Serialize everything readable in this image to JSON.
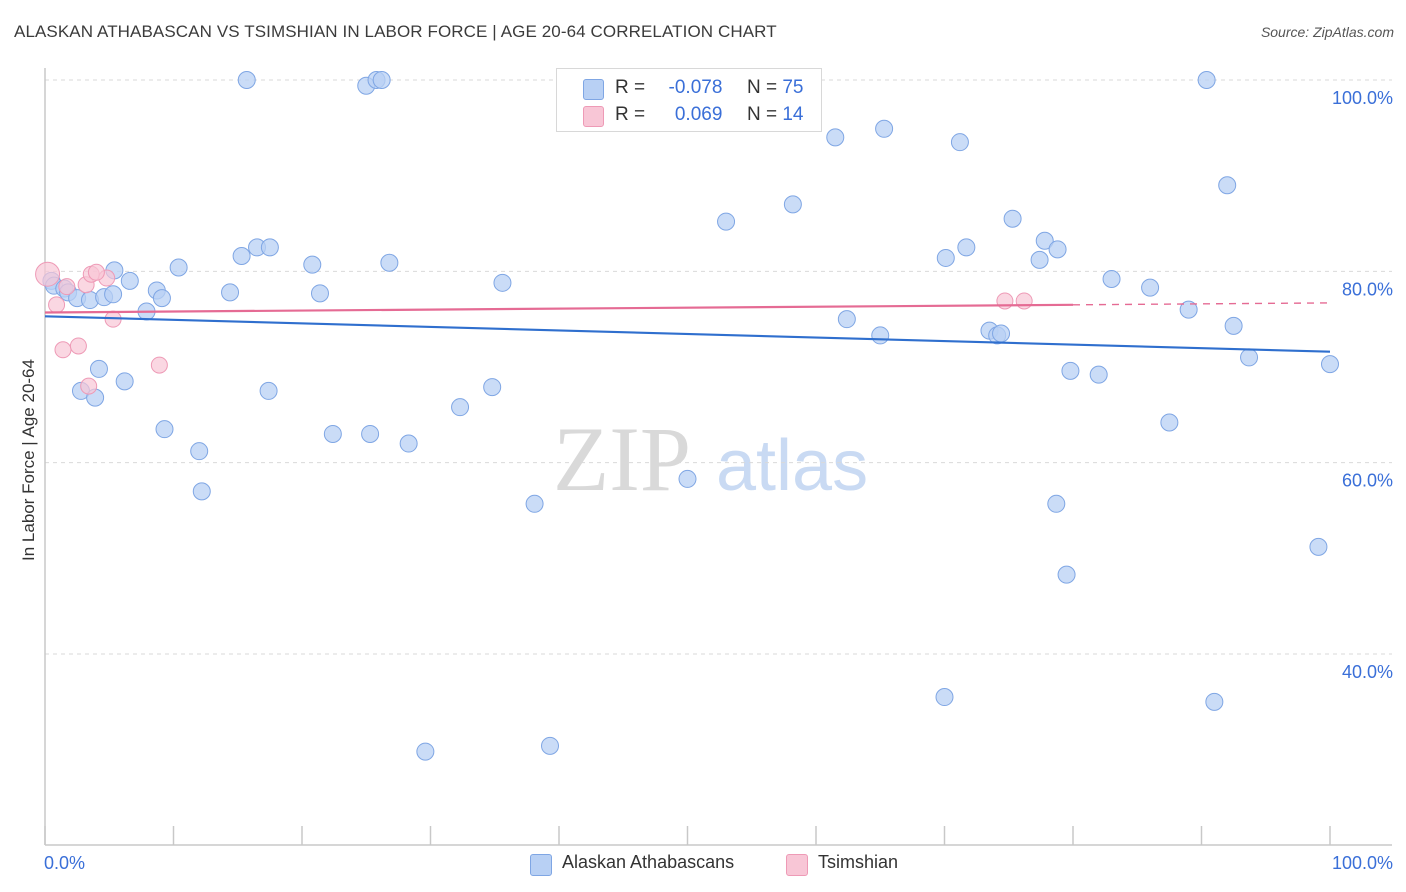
{
  "header": {
    "title": "ALASKAN ATHABASCAN VS TSIMSHIAN IN LABOR FORCE | AGE 20-64 CORRELATION CHART",
    "source": "Source: ZipAtlas.com"
  },
  "legend": {
    "series1": {
      "r_label": "R =",
      "r_value": "-0.078",
      "n_label": "N =",
      "n_value": "75"
    },
    "series2": {
      "r_label": "R =",
      "r_value": "0.069",
      "n_label": "N =",
      "n_value": "14"
    }
  },
  "bottom_legend": {
    "series1": "Alaskan Athabascans",
    "series2": "Tsimshian"
  },
  "watermark": {
    "zip": "ZIP",
    "atlas": "atlas"
  },
  "colors": {
    "blue_fill": "#b8d0f4",
    "blue_stroke": "#7fa6e4",
    "blue_line": "#2f6fce",
    "pink_fill": "#f8c6d6",
    "pink_stroke": "#ee9ab6",
    "pink_line": "#e56b94",
    "axis_text": "#3a6fd8",
    "grid": "#d9d9d9"
  },
  "chart_data": {
    "type": "scatter",
    "title": "ALASKAN ATHABASCAN VS TSIMSHIAN IN LABOR FORCE | AGE 20-64 CORRELATION CHART",
    "xlabel": "",
    "ylabel": "In Labor Force | Age 20-64",
    "xlim": [
      0,
      100
    ],
    "ylim": [
      20,
      102
    ],
    "x_tick_labels": [
      {
        "value": 0,
        "label": "0.0%"
      },
      {
        "value": 100,
        "label": "100.0%"
      }
    ],
    "y_tick_labels": [
      {
        "value": 100,
        "label": "100.0%"
      },
      {
        "value": 80,
        "label": "80.0%"
      },
      {
        "value": 60,
        "label": "60.0%"
      },
      {
        "value": 40,
        "label": "40.0%"
      }
    ],
    "series": [
      {
        "name": "Alaskan Athabascans",
        "trend": {
          "x": [
            0,
            100
          ],
          "y": [
            75.3,
            71.6
          ]
        },
        "points": [
          [
            0.5,
            79.0
          ],
          [
            0.7,
            78.5
          ],
          [
            1.5,
            78.2
          ],
          [
            1.8,
            77.8
          ],
          [
            2.5,
            77.2
          ],
          [
            3.5,
            77.0
          ],
          [
            4.6,
            77.3
          ],
          [
            5.3,
            77.6
          ],
          [
            2.8,
            67.5
          ],
          [
            3.9,
            66.8
          ],
          [
            4.2,
            69.8
          ],
          [
            6.2,
            68.5
          ],
          [
            5.4,
            80.1
          ],
          [
            6.6,
            79.0
          ],
          [
            7.9,
            75.8
          ],
          [
            8.7,
            78.0
          ],
          [
            9.1,
            77.2
          ],
          [
            10.4,
            80.4
          ],
          [
            9.3,
            63.5
          ],
          [
            12.0,
            61.2
          ],
          [
            12.2,
            57.0
          ],
          [
            14.4,
            77.8
          ],
          [
            15.3,
            81.6
          ],
          [
            16.5,
            82.5
          ],
          [
            17.5,
            82.5
          ],
          [
            17.4,
            67.5
          ],
          [
            15.7,
            100.0
          ],
          [
            20.8,
            80.7
          ],
          [
            21.4,
            77.7
          ],
          [
            22.4,
            63.0
          ],
          [
            25.0,
            99.4
          ],
          [
            25.8,
            100.0
          ],
          [
            26.2,
            100.0
          ],
          [
            25.3,
            63.0
          ],
          [
            26.8,
            80.9
          ],
          [
            28.3,
            62.0
          ],
          [
            29.6,
            29.8
          ],
          [
            32.3,
            65.8
          ],
          [
            34.8,
            67.9
          ],
          [
            35.6,
            78.8
          ],
          [
            38.1,
            55.7
          ],
          [
            39.3,
            30.4
          ],
          [
            50.0,
            58.3
          ],
          [
            53.0,
            85.2
          ],
          [
            58.2,
            87.0
          ],
          [
            61.5,
            94.0
          ],
          [
            62.4,
            75.0
          ],
          [
            65.0,
            73.3
          ],
          [
            65.3,
            94.9
          ],
          [
            70.1,
            81.4
          ],
          [
            70.0,
            35.5
          ],
          [
            71.2,
            93.5
          ],
          [
            71.7,
            82.5
          ],
          [
            73.5,
            73.8
          ],
          [
            74.1,
            73.3
          ],
          [
            74.4,
            73.5
          ],
          [
            75.3,
            85.5
          ],
          [
            77.4,
            81.2
          ],
          [
            77.8,
            83.2
          ],
          [
            78.8,
            82.3
          ],
          [
            78.7,
            55.7
          ],
          [
            79.5,
            48.3
          ],
          [
            79.8,
            69.6
          ],
          [
            82.0,
            69.2
          ],
          [
            83.0,
            79.2
          ],
          [
            86.0,
            78.3
          ],
          [
            87.5,
            64.2
          ],
          [
            89.0,
            76.0
          ],
          [
            90.4,
            100.0
          ],
          [
            91.0,
            35.0
          ],
          [
            92.0,
            89.0
          ],
          [
            92.5,
            74.3
          ],
          [
            93.7,
            71.0
          ],
          [
            99.1,
            51.2
          ],
          [
            100.0,
            70.3
          ]
        ]
      },
      {
        "name": "Tsimshian",
        "trend": {
          "x": [
            0,
            80
          ],
          "y": [
            75.7,
            76.5
          ]
        },
        "dashed_extension": {
          "x": [
            80,
            100
          ],
          "y": [
            76.5,
            76.7
          ]
        },
        "points": [
          [
            0.2,
            79.7
          ],
          [
            0.9,
            76.5
          ],
          [
            1.4,
            71.8
          ],
          [
            1.7,
            78.4
          ],
          [
            2.6,
            72.2
          ],
          [
            3.2,
            78.6
          ],
          [
            3.4,
            68.0
          ],
          [
            3.6,
            79.7
          ],
          [
            4.8,
            79.3
          ],
          [
            5.3,
            75.0
          ],
          [
            8.9,
            70.2
          ],
          [
            4.0,
            79.9
          ],
          [
            74.7,
            76.9
          ],
          [
            76.2,
            76.9
          ]
        ]
      }
    ]
  }
}
